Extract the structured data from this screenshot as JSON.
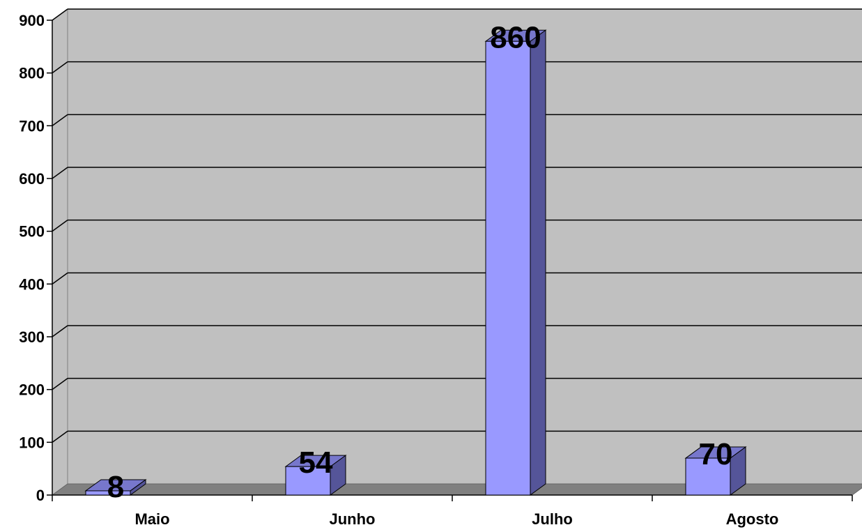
{
  "chart_data": {
    "type": "bar",
    "title": "",
    "xlabel": "",
    "ylabel": "",
    "categories": [
      "Maio",
      "Junho",
      "Julho",
      "Agosto"
    ],
    "values": [
      8,
      54,
      860,
      70
    ],
    "data_labels": [
      "8",
      "54",
      "860",
      "70"
    ],
    "ylim": [
      0,
      900
    ],
    "yticks": [
      0,
      100,
      200,
      300,
      400,
      500,
      600,
      700,
      800,
      900
    ],
    "ytick_labels": [
      "0",
      "100",
      "200",
      "300",
      "400",
      "500",
      "600",
      "700",
      "800",
      "900"
    ],
    "grid": true,
    "legend": "none",
    "style": "3d-column",
    "colors": {
      "bar_front": "#9999ff",
      "bar_top": "#7777cc",
      "bar_side": "#555599",
      "wall": "#c0c0c0",
      "floor": "#808080",
      "gridline": "#000000"
    }
  }
}
